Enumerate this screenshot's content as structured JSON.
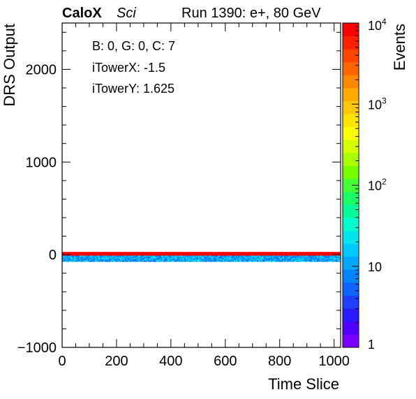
{
  "header": {
    "brand": "CaloX",
    "subtitle": "Sci",
    "run_label": "Run 1390: e+, 80 GeV"
  },
  "annotations": {
    "line1": "B: 0, G: 0, C: 7",
    "line2": "iTowerX: -1.5",
    "line3": "iTowerY: 1.625"
  },
  "chart_data": {
    "type": "heatmap",
    "xlabel": "Time Slice",
    "ylabel": "DRS Output",
    "zlabel": "Events",
    "xlim": [
      0,
      1024
    ],
    "ylim": [
      -1000,
      2500
    ],
    "zlim": [
      1,
      10000
    ],
    "zscale": "log",
    "x_ticks": [
      0,
      200,
      400,
      600,
      800,
      1000
    ],
    "y_ticks": [
      -1000,
      0,
      1000,
      2000
    ],
    "x_tick_labels": [
      "0",
      "200",
      "400",
      "600",
      "800",
      "1000"
    ],
    "y_tick_labels": [
      "−1000",
      "0",
      "1000",
      "2000"
    ],
    "z_tick_labels": [
      {
        "value": 1,
        "base": "1",
        "exp": ""
      },
      {
        "value": 10,
        "base": "10",
        "exp": ""
      },
      {
        "value": 100,
        "base": "10",
        "exp": "2"
      },
      {
        "value": 1000,
        "base": "10",
        "exp": "3"
      },
      {
        "value": 10000,
        "base": "10",
        "exp": "4"
      }
    ],
    "bands": [
      {
        "y_min": -10,
        "y_max": 30,
        "events": 8000,
        "pattern": "uniform"
      },
      {
        "y_min": -75,
        "y_max": -10,
        "events_range": [
          4,
          30
        ],
        "pattern": "noisy"
      }
    ],
    "palette": [
      "#7a00ff",
      "#4f00ff",
      "#2a1aff",
      "#1f3fff",
      "#0f63ff",
      "#0085ff",
      "#00a8ff",
      "#00c8ff",
      "#00e6ee",
      "#00ffcc",
      "#00ff99",
      "#1aff66",
      "#44ff33",
      "#77ff00",
      "#aaff00",
      "#d6ff00",
      "#ffff00",
      "#ffe600",
      "#ffc800",
      "#ffaa00",
      "#ff8800",
      "#ff6600",
      "#ff4400",
      "#ff2200",
      "#ff0000"
    ],
    "grid": false,
    "legend": "none"
  }
}
